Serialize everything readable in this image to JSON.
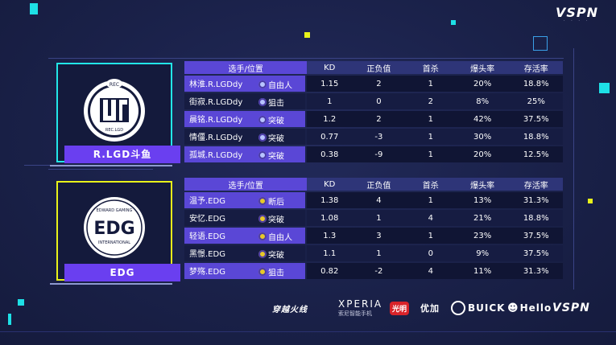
{
  "brand": {
    "top_logo": "VSPN",
    "top_logo_sub": "· · · ·"
  },
  "colors": {
    "accent_cyan": "#1ee0e6",
    "accent_yellow": "#e8f21a",
    "accent_purple": "#5a47d6",
    "background": "#1a2149"
  },
  "columns": [
    "选手/位置",
    "KD",
    "正负值",
    "首杀",
    "爆头率",
    "存活率"
  ],
  "teams": [
    {
      "name": "R.LGD斗鱼",
      "logo_text": "REC.LGD",
      "logo_top": "REC",
      "players": [
        {
          "name": "林淮.R.LGDdy",
          "role_icon": "shield-icon",
          "role": "自由人",
          "kd": "1.15",
          "pm": "2",
          "fb": "1",
          "hs": "20%",
          "sr": "18.8%"
        },
        {
          "name": "街寂.R.LGDdy",
          "role_icon": "crosshair-icon",
          "role": "狙击",
          "kd": "1",
          "pm": "0",
          "fb": "2",
          "hs": "8%",
          "sr": "25%"
        },
        {
          "name": "晨铭.R.LGDdy",
          "role_icon": "runner-icon",
          "role": "突破",
          "kd": "1.2",
          "pm": "2",
          "fb": "1",
          "hs": "42%",
          "sr": "37.5%"
        },
        {
          "name": "情僵.R.LGDdy",
          "role_icon": "runner-icon",
          "role": "突破",
          "kd": "0.77",
          "pm": "-3",
          "fb": "1",
          "hs": "30%",
          "sr": "18.8%"
        },
        {
          "name": "孤城.R.LGDdy",
          "role_icon": "runner-icon",
          "role": "突破",
          "kd": "0.38",
          "pm": "-9",
          "fb": "1",
          "hs": "20%",
          "sr": "12.5%"
        }
      ]
    },
    {
      "name": "EDG",
      "logo_text": "EDG",
      "logo_top": "EDWARD GAMING",
      "logo_bottom": "INTERNATIONAL",
      "players": [
        {
          "name": "温予.EDG",
          "role_icon": "runner-icon",
          "role": "断后",
          "kd": "1.38",
          "pm": "4",
          "fb": "1",
          "hs": "13%",
          "sr": "31.3%"
        },
        {
          "name": "安忆.EDG",
          "role_icon": "runner-icon",
          "role": "突破",
          "kd": "1.08",
          "pm": "1",
          "fb": "4",
          "hs": "21%",
          "sr": "18.8%"
        },
        {
          "name": "轻语.EDG",
          "role_icon": "shield-icon",
          "role": "自由人",
          "kd": "1.3",
          "pm": "3",
          "fb": "1",
          "hs": "23%",
          "sr": "37.5%"
        },
        {
          "name": "黑憬.EDG",
          "role_icon": "runner-icon",
          "role": "突破",
          "kd": "1.1",
          "pm": "1",
          "fb": "0",
          "hs": "9%",
          "sr": "37.5%"
        },
        {
          "name": "梦殇.EDG",
          "role_icon": "crosshair-icon",
          "role": "狙击",
          "kd": "0.82",
          "pm": "-2",
          "fb": "4",
          "hs": "11%",
          "sr": "31.3%"
        }
      ]
    }
  ],
  "sponsors": [
    {
      "name": "穿越火线",
      "sub": ""
    },
    {
      "name": "XPERIA",
      "sub": "索尼智能手机"
    },
    {
      "name": "光明",
      "sub": ""
    },
    {
      "name": "优加",
      "sub": ""
    },
    {
      "name": "BUICK",
      "sub": ""
    },
    {
      "name": "Hello",
      "sub": ""
    },
    {
      "name": "VSPN",
      "sub": ""
    }
  ]
}
